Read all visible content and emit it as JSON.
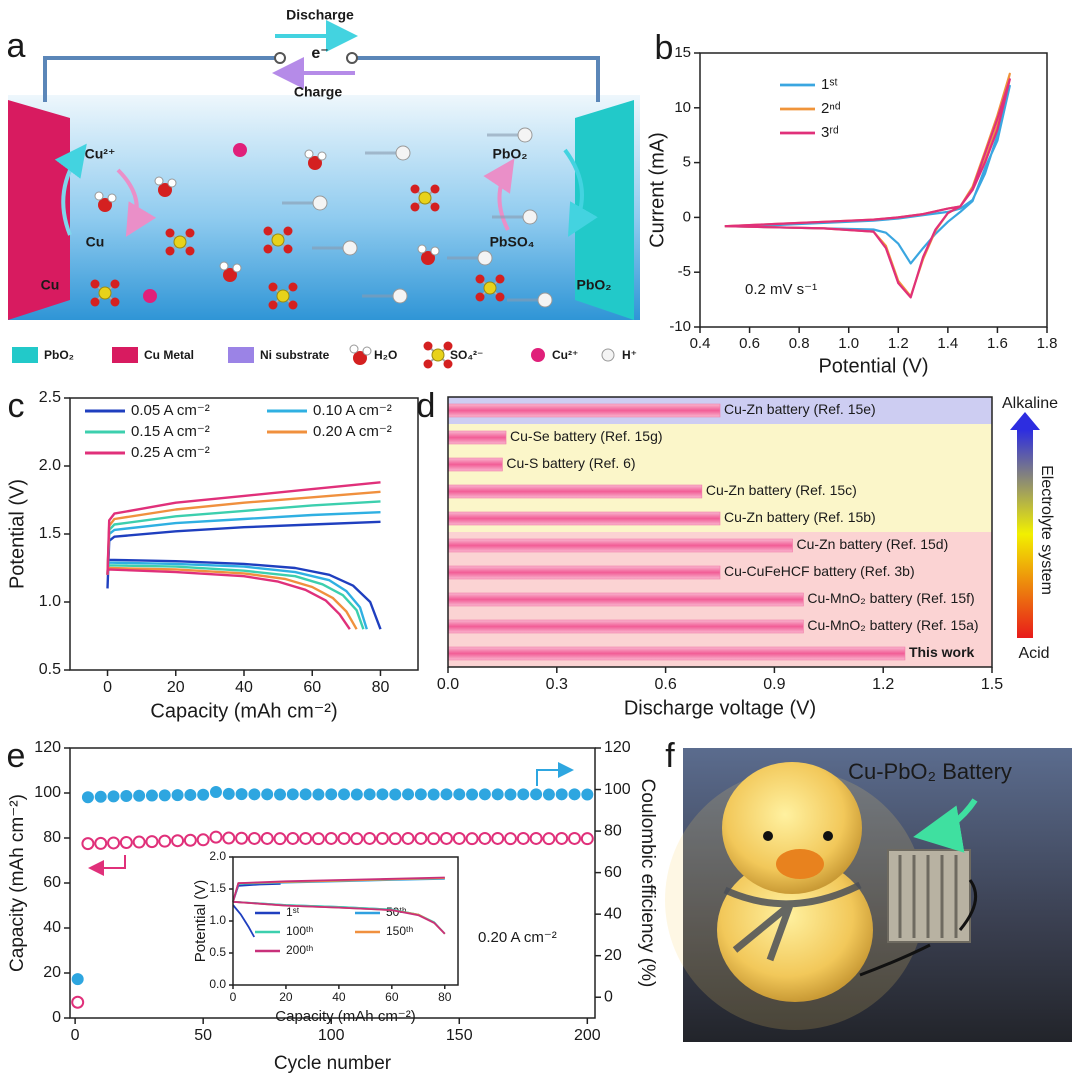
{
  "panel_labels": [
    "a",
    "b",
    "c",
    "d",
    "e",
    "f"
  ],
  "diagram": {
    "top": {
      "discharge": "Discharge",
      "electron": "e⁻",
      "charge": "Charge"
    },
    "left": {
      "ion": "Cu²⁺",
      "metal": "Cu",
      "electrode": "Cu"
    },
    "right": {
      "oxide": "PbO₂",
      "sulfate": "PbSO₄",
      "electrode": "PbO₂"
    },
    "legend": [
      "PbO₂",
      "Cu Metal",
      "Ni substrate",
      "H₂O",
      "SO₄²⁻",
      "Cu²⁺",
      "H⁺"
    ]
  },
  "chart_data": [
    {
      "type": "line",
      "xlabel": "Potential (V)",
      "ylabel": "Current (mA)",
      "annotation": "0.2 mV s⁻¹",
      "xlim": [
        0.4,
        1.8
      ],
      "xticks": [
        0.4,
        0.6,
        0.8,
        {
          "value": 1,
          "label": "1.0"
        },
        1.2,
        1.4,
        1.6,
        1.8
      ],
      "ylim": [
        -10,
        15
      ],
      "yticks": [
        -10,
        -5,
        0,
        5,
        10,
        15
      ],
      "x": [
        0.5,
        0.7,
        0.9,
        1.1,
        1.2,
        1.3,
        1.4,
        1.45,
        1.5,
        1.55,
        1.6,
        1.65,
        1.6,
        1.55,
        1.5,
        1.45,
        1.4,
        1.35,
        1.3,
        1.25,
        1.2,
        1.15,
        1.1,
        0.9,
        0.7,
        0.5
      ],
      "series": [
        {
          "name": "1ˢᵗ",
          "color": "#3aa6e0",
          "values": [
            -0.8,
            -0.7,
            -0.5,
            -0.3,
            -0.1,
            0.2,
            0.5,
            0.8,
            1.6,
            4,
            7.5,
            12,
            7,
            4.5,
            1.5,
            0.5,
            -0.4,
            -1.5,
            -2.8,
            -4.2,
            -2.4,
            -1.4,
            -1.1,
            -1,
            -0.9,
            -0.8
          ]
        },
        {
          "name": "2ⁿᵈ",
          "color": "#f0943a",
          "values": [
            -0.8,
            -0.6,
            -0.4,
            -0.2,
            0,
            0.3,
            0.8,
            1,
            2.8,
            6,
            9.3,
            13.1,
            8.4,
            5.2,
            2.6,
            1,
            0.4,
            -1.2,
            -3.8,
            -7.2,
            -5.8,
            -2.6,
            -1.3,
            -1,
            -0.9,
            -0.8
          ]
        },
        {
          "name": "3ʳᵈ",
          "color": "#e0307a",
          "values": [
            -0.8,
            -0.6,
            -0.4,
            -0.2,
            0,
            0.3,
            0.8,
            1,
            2.6,
            5.8,
            9,
            12.6,
            8,
            5,
            2.5,
            1,
            0.4,
            -1.1,
            -3.6,
            -7.3,
            -6,
            -2.8,
            -1.3,
            -1,
            -0.9,
            -0.8
          ]
        }
      ]
    },
    {
      "type": "line",
      "xlabel": "Capacity (mAh cm⁻²)",
      "ylabel": "Potential (V)",
      "xlim": [
        -11,
        91
      ],
      "xticks": [
        0,
        20,
        40,
        60,
        80
      ],
      "ylim": [
        0.5,
        2.5
      ],
      "yticks": [
        0.5,
        {
          "value": 1,
          "label": "1.0"
        },
        1.5,
        {
          "value": 2,
          "label": "2.0"
        },
        2.5
      ],
      "series": [
        {
          "name": "0.05 A cm⁻²",
          "color": "#1f3fbf",
          "x": [
            0,
            0.5,
            2,
            20,
            40,
            60,
            80,
            null,
            0,
            20,
            40,
            55,
            65,
            72,
            77,
            80
          ],
          "values": [
            1.1,
            1.45,
            1.48,
            1.52,
            1.55,
            1.57,
            1.59,
            null,
            1.31,
            1.3,
            1.28,
            1.25,
            1.2,
            1.12,
            1,
            0.8
          ]
        },
        {
          "name": "0.10 A cm⁻²",
          "color": "#2fb0e2",
          "x": [
            0,
            0.5,
            2,
            20,
            40,
            60,
            80,
            null,
            0,
            20,
            40,
            55,
            65,
            70,
            74,
            76
          ],
          "values": [
            1.2,
            1.5,
            1.53,
            1.58,
            1.61,
            1.64,
            1.66,
            null,
            1.29,
            1.28,
            1.26,
            1.22,
            1.16,
            1.08,
            0.96,
            0.8
          ]
        },
        {
          "name": "0.15 A cm⁻²",
          "color": "#3ccfae",
          "x": [
            0,
            0.5,
            2,
            20,
            40,
            60,
            80,
            null,
            0,
            20,
            40,
            55,
            63,
            69,
            73,
            75
          ],
          "values": [
            1.2,
            1.53,
            1.57,
            1.63,
            1.67,
            1.71,
            1.74,
            null,
            1.27,
            1.26,
            1.23,
            1.19,
            1.13,
            1.05,
            0.94,
            0.8
          ]
        },
        {
          "name": "0.20 A cm⁻²",
          "color": "#f0903e",
          "x": [
            0,
            0.5,
            2,
            20,
            40,
            60,
            80,
            null,
            0,
            20,
            40,
            52,
            60,
            66,
            70,
            73
          ],
          "values": [
            1.2,
            1.56,
            1.61,
            1.68,
            1.73,
            1.77,
            1.81,
            null,
            1.25,
            1.24,
            1.21,
            1.17,
            1.11,
            1.03,
            0.93,
            0.8
          ]
        },
        {
          "name": "0.25 A cm⁻²",
          "color": "#e0307a",
          "x": [
            0,
            0.5,
            2,
            20,
            40,
            60,
            80,
            null,
            0,
            20,
            40,
            50,
            58,
            64,
            68,
            71
          ],
          "values": [
            1.2,
            1.6,
            1.65,
            1.73,
            1.78,
            1.83,
            1.88,
            null,
            1.24,
            1.22,
            1.19,
            1.15,
            1.09,
            1.01,
            0.91,
            0.8
          ]
        }
      ]
    },
    {
      "type": "bar",
      "orientation": "horizontal",
      "xlabel": "Discharge voltage (V)",
      "xlim": [
        0,
        1.5
      ],
      "xticks": [
        {
          "value": 0,
          "label": "0.0"
        },
        0.3,
        0.6,
        0.9,
        1.2,
        1.5
      ],
      "categories": [
        "Cu-Zn battery (Ref. 15e)",
        "Cu-Se battery (Ref. 15g)",
        "Cu-S battery (Ref. 6)",
        "Cu-Zn battery (Ref. 15c)",
        "Cu-Zn battery (Ref. 15b)",
        "Cu-Zn battery (Ref. 15d)",
        "Cu-CuFeHCF battery (Ref. 3b)",
        "Cu-MnO₂ battery (Ref. 15f)",
        "Cu-MnO₂ battery (Ref. 15a)",
        "This work"
      ],
      "values": [
        0.75,
        0.16,
        0.15,
        0.7,
        0.75,
        0.95,
        0.75,
        0.98,
        0.98,
        1.26
      ],
      "color": "#f27aa8",
      "band_colors": [
        "#cdcdf2",
        "#fbf6c9",
        "#fbf6c9",
        "#fbf6c9",
        "#fbf6c9",
        "#fbd3d3",
        "#fbd3d3",
        "#fbd3d3",
        "#fbd3d3",
        "#fbd3d3"
      ],
      "label_colors": [
        "#222",
        "#222",
        "#222",
        "#222",
        "#222",
        "#222",
        "#222",
        "#222",
        "#222",
        "#e01818"
      ],
      "colorbar": {
        "top": "Alkaline",
        "label": "Electrolyte system",
        "bottom": "Acid",
        "colors": [
          "#2d2de0",
          "#f2f000",
          "#e81a1a"
        ]
      }
    },
    {
      "type": "scatter",
      "xlabel": "Cycle number",
      "ylabel": "Capacity (mAh cm⁻²)",
      "y2label": "Coulombic efficiency (%)",
      "annotation": "0.20 A cm⁻²",
      "xlim": [
        -2,
        203
      ],
      "xticks": [
        0,
        50,
        100,
        150,
        200
      ],
      "ylim": [
        0,
        120
      ],
      "yticks": [
        0,
        20,
        40,
        60,
        80,
        100,
        120
      ],
      "y2lim": [
        -10,
        120
      ],
      "y2ticks": [
        0,
        20,
        40,
        60,
        80,
        100,
        120
      ],
      "x": [
        1,
        5,
        10,
        15,
        20,
        25,
        30,
        35,
        40,
        45,
        50,
        55,
        60,
        65,
        70,
        75,
        80,
        85,
        90,
        95,
        100,
        105,
        110,
        115,
        120,
        125,
        130,
        135,
        140,
        145,
        150,
        155,
        160,
        165,
        170,
        175,
        180,
        185,
        190,
        195,
        200
      ],
      "series": [
        {
          "color": "#e0307a",
          "marker": "open",
          "values": [
            7,
            77.5,
            77.6,
            77.8,
            78,
            78.2,
            78.4,
            78.6,
            78.8,
            79,
            79.2,
            80.4,
            80,
            79.9,
            79.8,
            79.8,
            79.7,
            79.8,
            79.8,
            79.7,
            79.8,
            79.8,
            79.7,
            79.8,
            79.8,
            79.7,
            79.8,
            79.8,
            79.7,
            79.8,
            79.8,
            79.7,
            79.8,
            79.8,
            79.7,
            79.8,
            79.8,
            79.7,
            79.8,
            79.8,
            79.7
          ]
        },
        {
          "color": "#2ea6e0",
          "marker": "filled",
          "axis": "y2",
          "values": [
            8.7,
            96.3,
            96.5,
            96.7,
            96.9,
            97,
            97.1,
            97.2,
            97.3,
            97.4,
            97.5,
            98.8,
            97.9,
            97.8,
            97.7,
            97.7,
            97.6,
            97.7,
            97.7,
            97.6,
            97.7,
            97.7,
            97.6,
            97.7,
            97.7,
            97.6,
            97.7,
            97.7,
            97.6,
            97.7,
            97.7,
            97.6,
            97.7,
            97.7,
            97.6,
            97.7,
            97.7,
            97.6,
            97.7,
            97.7,
            97.6
          ]
        }
      ]
    },
    {
      "type": "line",
      "xlabel": "Capacity (mAh cm⁻²)",
      "ylabel": "Potential (V)",
      "xlim": [
        0,
        85
      ],
      "xticks": [
        0,
        20,
        40,
        60,
        80
      ],
      "ylim": [
        0,
        2
      ],
      "yticks": [
        {
          "value": 0,
          "label": "0.0"
        },
        0.5,
        {
          "value": 1,
          "label": "1.0"
        },
        1.5,
        {
          "value": 2,
          "label": "2.0"
        }
      ],
      "series": [
        {
          "name": "1ˢᵗ",
          "color": "#1f3fbf",
          "x": [
            0,
            2,
            10,
            18,
            null,
            0,
            3,
            6,
            8
          ],
          "values": [
            1.3,
            1.55,
            1.57,
            1.58,
            null,
            1.25,
            1.1,
            0.9,
            0.75
          ]
        },
        {
          "name": "50ᵗʰ",
          "color": "#2fa0e0",
          "x": [
            0,
            2,
            20,
            40,
            60,
            80,
            null,
            0,
            20,
            40,
            60,
            70,
            76,
            80
          ],
          "values": [
            1.3,
            1.58,
            1.6,
            1.62,
            1.64,
            1.66,
            null,
            1.3,
            1.25,
            1.22,
            1.18,
            1.1,
            0.98,
            0.8
          ]
        },
        {
          "name": "100ᵗʰ",
          "color": "#3ccfae",
          "x": [
            0,
            2,
            20,
            40,
            60,
            80,
            null,
            0,
            20,
            40,
            60,
            70,
            76,
            80
          ],
          "values": [
            1.3,
            1.58,
            1.61,
            1.63,
            1.65,
            1.67,
            null,
            1.3,
            1.25,
            1.22,
            1.18,
            1.1,
            0.98,
            0.8
          ]
        },
        {
          "name": "150ᵗʰ",
          "color": "#f0903e",
          "x": [
            0,
            2,
            20,
            40,
            60,
            80,
            null,
            0,
            20,
            40,
            60,
            70,
            76,
            80
          ],
          "values": [
            1.3,
            1.59,
            1.61,
            1.63,
            1.65,
            1.67,
            null,
            1.3,
            1.24,
            1.21,
            1.17,
            1.1,
            0.97,
            0.8
          ]
        },
        {
          "name": "200ᵗʰ",
          "color": "#c8307a",
          "x": [
            0,
            2,
            20,
            40,
            60,
            80,
            null,
            0,
            20,
            40,
            60,
            70,
            76,
            80
          ],
          "values": [
            1.3,
            1.59,
            1.62,
            1.64,
            1.66,
            1.68,
            null,
            1.3,
            1.24,
            1.21,
            1.17,
            1.09,
            0.97,
            0.8
          ]
        }
      ]
    }
  ],
  "photo": {
    "label": "Cu-PbO₂ Battery"
  }
}
